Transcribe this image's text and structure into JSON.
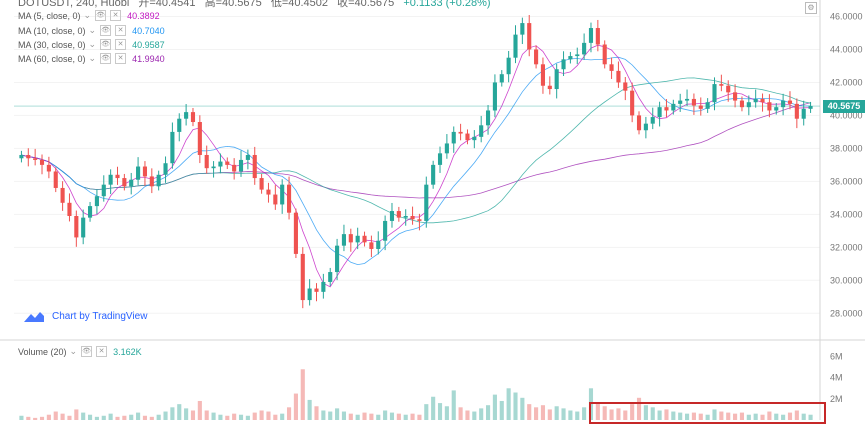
{
  "header": {
    "symbol": "DOTUSDT, 240, Huobi",
    "open": "开=40.4541",
    "high": "高=40.5675",
    "low": "低=40.4502",
    "close": "收=40.5675",
    "change": "+0.1133 (+0.28%)"
  },
  "legend": [
    {
      "label": "MA (5, close, 0)",
      "value": "40.3892",
      "color": "#c218c2"
    },
    {
      "label": "MA (10, close, 0)",
      "value": "40.7040",
      "color": "#2196f3"
    },
    {
      "label": "MA (30, close, 0)",
      "value": "40.9587",
      "color": "#26a69a"
    },
    {
      "label": "MA (60, close, 0)",
      "value": "41.9940",
      "color": "#9c27b0"
    }
  ],
  "volume_legend": {
    "label": "Volume (20)",
    "value": "3.162K",
    "color": "#26a69a"
  },
  "price_axis": [
    "46.0000",
    "44.0000",
    "42.0000",
    "40.0000",
    "38.0000",
    "36.0000",
    "34.0000",
    "32.0000",
    "30.0000",
    "28.0000"
  ],
  "volume_axis": [
    "6M",
    "4M",
    "2M"
  ],
  "last_price": "40.5675",
  "watermark": "Chart by TradingView",
  "colors": {
    "up": "#26a69a",
    "down": "#ef5350",
    "up_vol": "#a7d8d2",
    "down_vol": "#f5b9b7"
  },
  "chart_data": {
    "type": "candlestick",
    "ylim": [
      26.5,
      47.0
    ],
    "closes": [
      37.6,
      37.4,
      37.3,
      37.0,
      36.6,
      35.6,
      34.7,
      33.9,
      32.6,
      33.8,
      34.5,
      35.1,
      35.8,
      36.4,
      36.2,
      35.7,
      36.1,
      36.9,
      36.3,
      35.7,
      36.4,
      37.1,
      39.0,
      39.8,
      40.2,
      39.6,
      37.6,
      36.8,
      36.9,
      37.2,
      37.0,
      36.6,
      37.3,
      37.6,
      36.2,
      35.5,
      35.2,
      34.6,
      35.8,
      34.1,
      31.6,
      28.8,
      29.5,
      29.3,
      29.9,
      30.5,
      32.1,
      32.8,
      32.3,
      32.7,
      32.3,
      31.9,
      32.4,
      33.6,
      34.2,
      33.8,
      33.9,
      33.7,
      33.6,
      35.8,
      37.0,
      37.7,
      38.3,
      39.0,
      38.9,
      38.5,
      38.7,
      39.4,
      40.3,
      42.0,
      42.5,
      43.5,
      44.9,
      45.6,
      44.0,
      43.1,
      41.8,
      41.6,
      42.8,
      43.4,
      43.6,
      43.7,
      44.4,
      45.3,
      44.3,
      43.1,
      42.7,
      42.0,
      41.5,
      40.0,
      39.1,
      39.5,
      39.9,
      40.5,
      40.3,
      40.7,
      40.9,
      41.0,
      40.6,
      40.4,
      40.8,
      41.9,
      41.8,
      41.4,
      40.9,
      40.5,
      40.8,
      41.0,
      40.8,
      40.3,
      40.5,
      40.9,
      40.7,
      39.8,
      40.4,
      40.5675
    ],
    "volumes": [
      0.4,
      0.3,
      0.2,
      0.3,
      0.5,
      0.8,
      0.6,
      0.4,
      1.0,
      0.7,
      0.5,
      0.3,
      0.4,
      0.6,
      0.3,
      0.4,
      0.5,
      0.7,
      0.4,
      0.3,
      0.5,
      0.8,
      1.2,
      1.5,
      1.1,
      0.9,
      1.8,
      0.9,
      0.7,
      0.5,
      0.4,
      0.6,
      0.5,
      0.4,
      0.7,
      0.9,
      0.8,
      0.5,
      0.6,
      1.2,
      2.5,
      4.8,
      1.9,
      1.3,
      0.9,
      0.8,
      1.1,
      0.8,
      0.6,
      0.5,
      0.7,
      0.6,
      0.5,
      0.9,
      0.7,
      0.6,
      0.5,
      0.6,
      0.5,
      1.5,
      2.2,
      1.6,
      1.3,
      2.8,
      1.2,
      0.9,
      0.8,
      1.1,
      1.4,
      2.4,
      1.8,
      3.0,
      2.6,
      2.1,
      1.5,
      1.2,
      1.4,
      1.0,
      1.3,
      1.1,
      0.9,
      0.8,
      1.2,
      3.0,
      1.6,
      1.3,
      1.0,
      1.1,
      0.9,
      1.5,
      2.1,
      1.4,
      1.2,
      0.9,
      1.0,
      0.8,
      0.7,
      0.6,
      0.7,
      0.6,
      0.5,
      1.0,
      0.8,
      0.7,
      0.6,
      0.7,
      0.5,
      0.6,
      0.5,
      0.8,
      0.6,
      0.5,
      0.7,
      0.9,
      0.6,
      0.5
    ]
  }
}
